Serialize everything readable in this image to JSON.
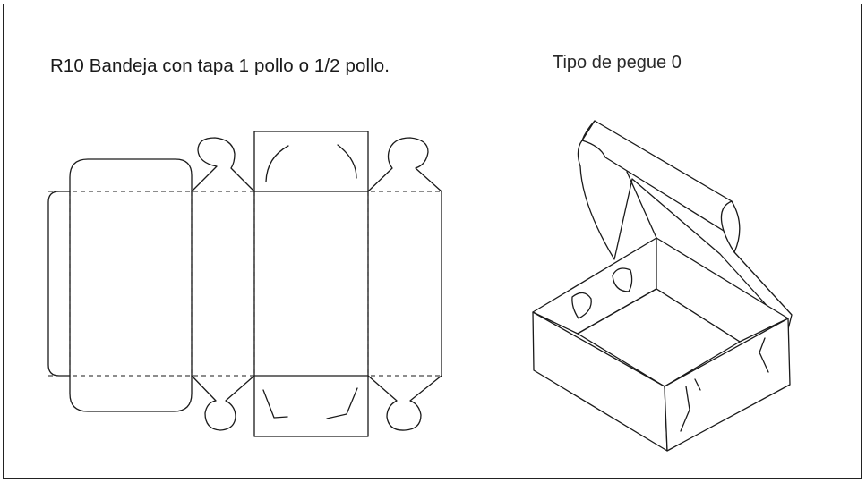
{
  "figure": {
    "title": "R10 Bandeja con tapa 1 pollo o 1/2 pollo.",
    "subtitle": "Tipo de pegue 0"
  }
}
